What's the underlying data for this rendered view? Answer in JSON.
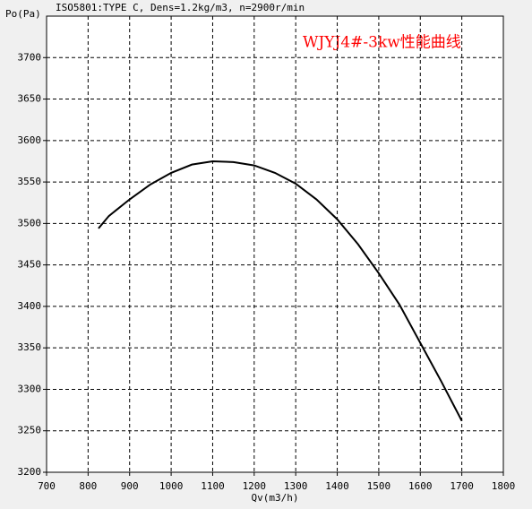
{
  "chart_data": {
    "type": "line",
    "title": "ISO5801:TYPE C, Dens=1.2kg/m3, n=2900r/min",
    "annotation": "WJYJ4#-3kw性能曲线",
    "annotation_color": "#ff0000",
    "x_label": "Qv(m3/h)",
    "y_label": "Po(Pa)",
    "x": [
      825,
      850,
      900,
      950,
      1000,
      1050,
      1100,
      1150,
      1200,
      1250,
      1300,
      1350,
      1400,
      1450,
      1500,
      1550,
      1600,
      1650,
      1700
    ],
    "series": [
      {
        "color": "#000000",
        "values": [
          3494,
          3509,
          3529,
          3547,
          3561,
          3571,
          3575,
          3574,
          3570,
          3561,
          3548,
          3529,
          3505,
          3475,
          3440,
          3402,
          3356,
          3310,
          3262
        ]
      }
    ],
    "xlim": [
      700,
      1800
    ],
    "xticks": [
      700,
      800,
      900,
      1000,
      1100,
      1200,
      1300,
      1400,
      1500,
      1600,
      1700,
      1800
    ],
    "ylim": [
      3200,
      3750
    ],
    "yticks": [
      3200,
      3250,
      3300,
      3350,
      3400,
      3450,
      3500,
      3550,
      3600,
      3650,
      3700
    ],
    "grid": true
  }
}
